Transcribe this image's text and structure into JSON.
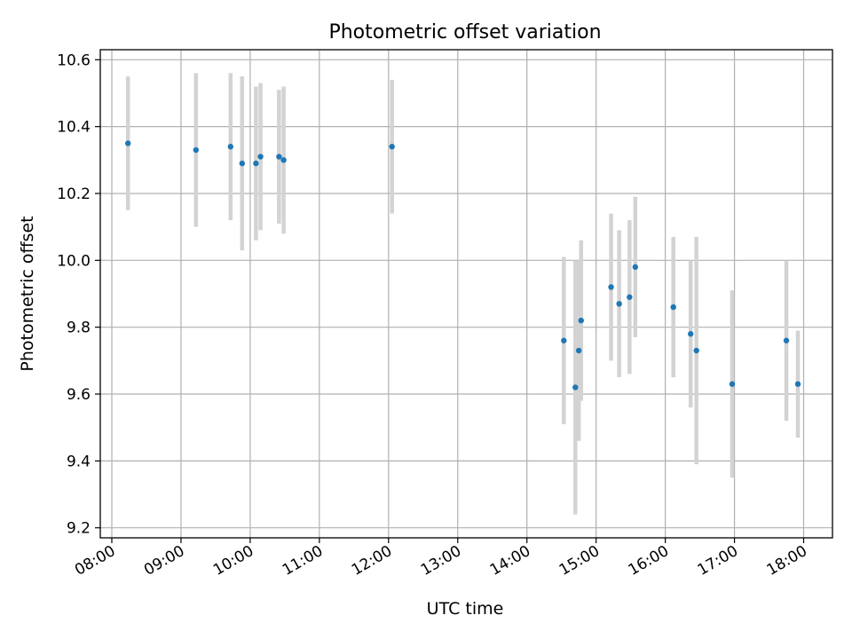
{
  "chart_data": {
    "type": "scatter",
    "title": "Photometric offset variation",
    "xlabel": "UTC time",
    "ylabel": "Photometric offset",
    "xlim": [
      "07:50",
      "18:25"
    ],
    "ylim": [
      9.17,
      10.63
    ],
    "grid": true,
    "x_ticks": [
      "08:00",
      "09:00",
      "10:00",
      "11:00",
      "12:00",
      "13:00",
      "14:00",
      "15:00",
      "16:00",
      "17:00",
      "18:00"
    ],
    "y_ticks": [
      9.2,
      9.4,
      9.6,
      9.8,
      10.0,
      10.2,
      10.4,
      10.6
    ],
    "y_tick_labels": [
      "9.2",
      "9.4",
      "9.6",
      "9.8",
      "10.0",
      "10.2",
      "10.4",
      "10.6"
    ],
    "colors": {
      "point": "#1f77b4",
      "errorbar": "#d3d3d3",
      "grid": "#b0b0b0"
    },
    "series": [
      {
        "points": [
          {
            "x": "08:14",
            "y": 10.35,
            "err": 0.2
          },
          {
            "x": "09:13",
            "y": 10.33,
            "err": 0.23
          },
          {
            "x": "09:43",
            "y": 10.34,
            "err": 0.22
          },
          {
            "x": "09:53",
            "y": 10.29,
            "err": 0.26
          },
          {
            "x": "10:05",
            "y": 10.29,
            "err": 0.23
          },
          {
            "x": "10:09",
            "y": 10.31,
            "err": 0.22
          },
          {
            "x": "10:25",
            "y": 10.31,
            "err": 0.2
          },
          {
            "x": "10:29",
            "y": 10.3,
            "err": 0.22
          },
          {
            "x": "12:03",
            "y": 10.34,
            "err": 0.2
          },
          {
            "x": "14:32",
            "y": 9.76,
            "err": 0.25
          },
          {
            "x": "14:42",
            "y": 9.62,
            "err": 0.38
          },
          {
            "x": "14:45",
            "y": 9.73,
            "err": 0.27
          },
          {
            "x": "14:47",
            "y": 9.82,
            "err": 0.24
          },
          {
            "x": "15:13",
            "y": 9.92,
            "err": 0.22
          },
          {
            "x": "15:20",
            "y": 9.87,
            "err": 0.22
          },
          {
            "x": "15:29",
            "y": 9.89,
            "err": 0.23
          },
          {
            "x": "15:34",
            "y": 9.98,
            "err": 0.21
          },
          {
            "x": "16:07",
            "y": 9.86,
            "err": 0.21
          },
          {
            "x": "16:22",
            "y": 9.78,
            "err": 0.22
          },
          {
            "x": "16:27",
            "y": 9.73,
            "err": 0.34
          },
          {
            "x": "16:58",
            "y": 9.63,
            "err": 0.28
          },
          {
            "x": "17:45",
            "y": 9.76,
            "err": 0.24
          },
          {
            "x": "17:55",
            "y": 9.63,
            "err": 0.16
          }
        ]
      }
    ]
  }
}
